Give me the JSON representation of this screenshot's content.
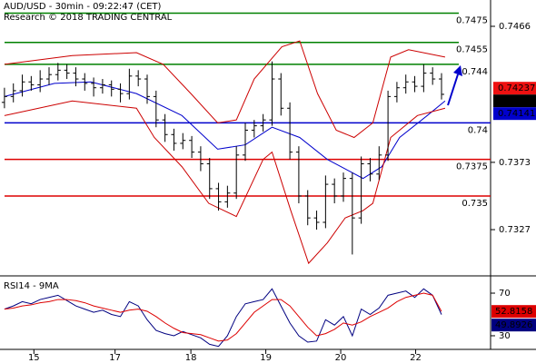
{
  "chart_data": [
    {
      "type": "ohlc",
      "title": "AUD/USD - 30min - 09:22:47 (CET)",
      "subtitle": "Research © 2018 TRADING CENTRAL",
      "x": [
        0,
        1,
        2,
        3,
        4,
        5,
        6,
        7,
        8,
        9,
        10,
        11,
        12,
        13,
        14,
        15,
        16,
        17,
        18,
        19,
        20,
        21,
        22,
        23,
        24,
        25,
        26,
        27,
        28,
        29,
        30,
        31,
        32,
        33,
        34,
        35,
        36,
        37,
        38,
        39,
        40,
        41,
        42,
        43,
        44,
        45,
        46,
        47,
        48,
        49
      ],
      "open": [
        0.7414,
        0.7418,
        0.7422,
        0.7428,
        0.7426,
        0.743,
        0.7433,
        0.7436,
        0.7434,
        0.743,
        0.7427,
        0.7424,
        0.7426,
        0.7423,
        0.742,
        0.7432,
        0.743,
        0.7418,
        0.7402,
        0.7392,
        0.7386,
        0.7388,
        0.738,
        0.7372,
        0.7355,
        0.7346,
        0.7352,
        0.7378,
        0.7395,
        0.7398,
        0.7402,
        0.743,
        0.741,
        0.738,
        0.735,
        0.7335,
        0.7332,
        0.7358,
        0.735,
        0.7362,
        0.7335,
        0.7372,
        0.7365,
        0.7378,
        0.7418,
        0.7424,
        0.7428,
        0.7425,
        0.7434,
        0.743
      ],
      "high": [
        0.7424,
        0.7427,
        0.7433,
        0.7432,
        0.7436,
        0.7438,
        0.7441,
        0.744,
        0.7438,
        0.7434,
        0.7431,
        0.743,
        0.7429,
        0.7427,
        0.7437,
        0.7436,
        0.7433,
        0.7422,
        0.7406,
        0.7396,
        0.7393,
        0.7391,
        0.7384,
        0.7376,
        0.7359,
        0.7357,
        0.7384,
        0.74,
        0.7402,
        0.7406,
        0.7442,
        0.7434,
        0.7414,
        0.7384,
        0.7354,
        0.734,
        0.7364,
        0.7362,
        0.7366,
        0.7366,
        0.7377,
        0.7376,
        0.7384,
        0.7422,
        0.7428,
        0.7433,
        0.7432,
        0.744,
        0.7438,
        0.7434
      ],
      "low": [
        0.741,
        0.7414,
        0.7418,
        0.7422,
        0.7421,
        0.7426,
        0.7429,
        0.743,
        0.7425,
        0.7422,
        0.7418,
        0.742,
        0.7418,
        0.7414,
        0.7416,
        0.7425,
        0.7413,
        0.7397,
        0.7387,
        0.7381,
        0.7382,
        0.7376,
        0.7367,
        0.7348,
        0.734,
        0.7342,
        0.7348,
        0.7374,
        0.739,
        0.7394,
        0.7398,
        0.7405,
        0.7375,
        0.7345,
        0.733,
        0.7327,
        0.7328,
        0.7345,
        0.7346,
        0.731,
        0.7331,
        0.736,
        0.7361,
        0.7374,
        0.7414,
        0.742,
        0.7421,
        0.7421,
        0.7426,
        0.7416
      ],
      "close": [
        0.7418,
        0.7422,
        0.7428,
        0.7426,
        0.743,
        0.7433,
        0.7436,
        0.7434,
        0.743,
        0.7427,
        0.7424,
        0.7426,
        0.7423,
        0.742,
        0.7432,
        0.743,
        0.7418,
        0.7402,
        0.7392,
        0.7386,
        0.7388,
        0.738,
        0.7372,
        0.7355,
        0.7346,
        0.7352,
        0.7378,
        0.7395,
        0.7398,
        0.7402,
        0.743,
        0.741,
        0.738,
        0.735,
        0.7335,
        0.7332,
        0.7358,
        0.735,
        0.7362,
        0.7335,
        0.7372,
        0.7365,
        0.7378,
        0.7418,
        0.7424,
        0.7428,
        0.7425,
        0.7434,
        0.743,
        0.74195
      ],
      "bar_color": "#000000",
      "overlays": [
        {
          "color": "#0000cc",
          "x": [
            0,
            5.6,
            9.7,
            14.8,
            19.9,
            23.9,
            27,
            30,
            33.1,
            36.2,
            40.2,
            42.3,
            44.3,
            47.4,
            49.4
          ],
          "values": [
            0.7418,
            0.7427,
            0.7428,
            0.742,
            0.7405,
            0.7382,
            0.7385,
            0.7397,
            0.739,
            0.7375,
            0.7362,
            0.737,
            0.739,
            0.7405,
            0.7415
          ]
        },
        {
          "color": "#cc0000",
          "x": [
            0,
            7.6,
            14.8,
            17.8,
            20.9,
            23.9,
            26,
            28,
            31.1,
            33.1,
            35.1,
            37.2,
            39.2,
            41.3,
            43.3,
            45.3,
            49.4
          ],
          "values": [
            0.744,
            0.7446,
            0.7448,
            0.744,
            0.742,
            0.74,
            0.7402,
            0.743,
            0.7452,
            0.7456,
            0.742,
            0.7395,
            0.739,
            0.74,
            0.7445,
            0.745,
            0.7445
          ]
        },
        {
          "color": "#cc0000",
          "x": [
            0,
            7.6,
            14.8,
            16.8,
            19.9,
            22.9,
            26,
            29,
            30,
            32.1,
            34.1,
            36.2,
            38.2,
            40.2,
            41.3,
            43.3,
            46.3,
            49.4
          ],
          "values": [
            0.7405,
            0.7415,
            0.741,
            0.739,
            0.737,
            0.7345,
            0.7336,
            0.7375,
            0.738,
            0.734,
            0.7304,
            0.7318,
            0.7335,
            0.734,
            0.7345,
            0.739,
            0.7405,
            0.741
          ]
        }
      ],
      "levels": [
        {
          "value": 0.7475,
          "color": "#008000"
        },
        {
          "value": 0.7455,
          "color": "#008000"
        },
        {
          "value": 0.744,
          "color": "#008000"
        },
        {
          "value": 0.74,
          "color": "#0000cc"
        },
        {
          "value": 0.7375,
          "color": "#dd0000"
        },
        {
          "value": 0.735,
          "color": "#dd0000"
        }
      ],
      "price_markers": [
        {
          "value": 0.74237,
          "color": "#ee1111"
        },
        {
          "value": 0.74141,
          "color": "#0000cc"
        }
      ],
      "last_color": "#000000",
      "xlim": [
        -0.5,
        54.5
      ],
      "ylim": [
        0.7296,
        0.7484
      ],
      "yticks": [
        0.7327,
        0.7373,
        0.7466
      ],
      "xticks": [
        {
          "value": 3.3,
          "label": "15"
        },
        {
          "value": 12.4,
          "label": "17"
        },
        {
          "value": 20.9,
          "label": "18"
        },
        {
          "value": 29.3,
          "label": "19"
        },
        {
          "value": 37.7,
          "label": "20"
        },
        {
          "value": 46.1,
          "label": "22"
        }
      ]
    },
    {
      "type": "line",
      "title": "RSI14 - 9MA",
      "series": [
        {
          "color": "#000080",
          "values": [
            55,
            58,
            62,
            60,
            64,
            66,
            68,
            63,
            58,
            55,
            52,
            54,
            50,
            48,
            62,
            58,
            45,
            35,
            32,
            30,
            34,
            31,
            28,
            22,
            20,
            30,
            48,
            60,
            62,
            64,
            74,
            58,
            42,
            30,
            24,
            25,
            45,
            40,
            48,
            30,
            55,
            50,
            56,
            68,
            70,
            72,
            66,
            74,
            68,
            49.8926
          ]
        },
        {
          "color": "#dd0000",
          "values": [
            55,
            56,
            58,
            59,
            61,
            62,
            64,
            64,
            63,
            61,
            58,
            56,
            54,
            52,
            54,
            55,
            53,
            48,
            42,
            37,
            33,
            32,
            31,
            28,
            25,
            26,
            32,
            42,
            52,
            58,
            64,
            64,
            58,
            48,
            38,
            30,
            32,
            36,
            42,
            40,
            43,
            48,
            52,
            56,
            62,
            66,
            68,
            70,
            68,
            52.8158
          ]
        }
      ],
      "ylim": [
        17.2,
        84.5
      ],
      "yticks": [
        30,
        70
      ]
    }
  ]
}
